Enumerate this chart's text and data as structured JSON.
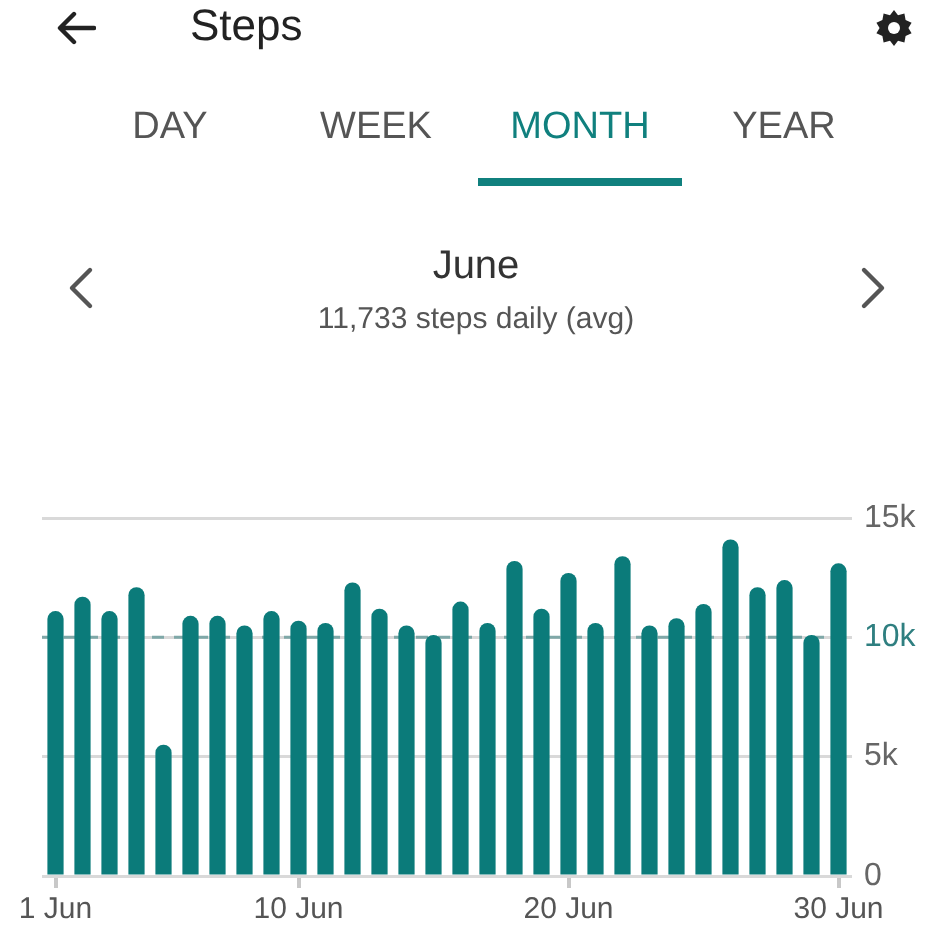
{
  "chart_data": {
    "type": "bar",
    "title": "June",
    "subtitle": "11,733 steps daily (avg)",
    "annotations": [
      "Steps",
      "DAY",
      "WEEK",
      "MONTH",
      "YEAR"
    ],
    "categories": [
      "1 Jun",
      null,
      null,
      null,
      null,
      null,
      null,
      null,
      null,
      "10 Jun",
      null,
      null,
      null,
      null,
      null,
      null,
      null,
      null,
      null,
      "20 Jun",
      null,
      null,
      null,
      null,
      null,
      null,
      null,
      null,
      null,
      "30 Jun"
    ],
    "values": [
      11100,
      11700,
      11100,
      12100,
      5500,
      10900,
      10900,
      10500,
      11100,
      10700,
      10600,
      12300,
      11200,
      10500,
      10100,
      11500,
      10600,
      13200,
      11200,
      12700,
      10600,
      13400,
      10500,
      10800,
      11400,
      14100,
      12100,
      12400,
      10100,
      13100
    ],
    "color": "#0b7b7a",
    "ylim": [
      0,
      15000
    ],
    "yticks": [
      0,
      {
        "value": 5000,
        "label": "5k"
      },
      {
        "value": 10000,
        "label": "10k"
      },
      {
        "value": 15000,
        "label": "15k"
      }
    ],
    "grid": "y",
    "ref_lines": [
      {
        "axis": "y",
        "value": 10000,
        "color": "#7fa8a8",
        "line_style": "dashed"
      }
    ]
  }
}
